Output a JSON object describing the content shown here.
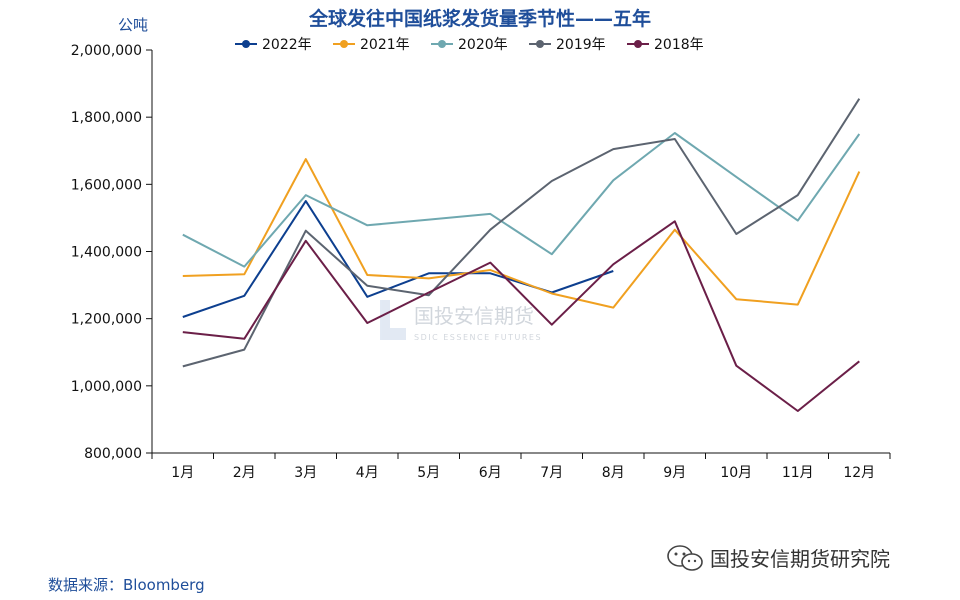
{
  "chart_data": {
    "type": "line",
    "title": "全球发往中国纸浆发货量季节性——五年",
    "ylabel": "公吨",
    "xlabel": "",
    "ylim": [
      800000,
      2000000
    ],
    "yticks": [
      "800,000",
      "1,000,000",
      "1,200,000",
      "1,400,000",
      "1,600,000",
      "1,800,000",
      "2,000,000"
    ],
    "ytick_values": [
      800000,
      1000000,
      1200000,
      1400000,
      1600000,
      1800000,
      2000000
    ],
    "categories": [
      "1月",
      "2月",
      "3月",
      "4月",
      "5月",
      "6月",
      "7月",
      "8月",
      "9月",
      "10月",
      "11月",
      "12月"
    ],
    "legend_position": "top-center",
    "series": [
      {
        "name": "2022年",
        "color": "#0d3f8f",
        "values": [
          1205000,
          1268000,
          1550000,
          1265000,
          1335000,
          1335000,
          1278000,
          1342000,
          null,
          null,
          null,
          null
        ]
      },
      {
        "name": "2021年",
        "color": "#f0a020",
        "values": [
          1327000,
          1332000,
          1675000,
          1330000,
          1320000,
          1345000,
          1275000,
          1233000,
          1465000,
          1258000,
          1242000,
          1638000
        ]
      },
      {
        "name": "2020年",
        "color": "#6fa8b0",
        "values": [
          1450000,
          1355000,
          1568000,
          1478000,
          1495000,
          1512000,
          1392000,
          1612000,
          1753000,
          1622000,
          1492000,
          1750000
        ]
      },
      {
        "name": "2019年",
        "color": "#5c6470",
        "values": [
          1058000,
          1108000,
          1462000,
          1298000,
          1270000,
          1465000,
          1610000,
          1705000,
          1735000,
          1452000,
          1568000,
          1855000
        ]
      },
      {
        "name": "2018年",
        "color": "#6b1f48",
        "values": [
          1160000,
          1140000,
          1432000,
          1187000,
          1278000,
          1367000,
          1182000,
          1362000,
          1490000,
          1060000,
          925000,
          1073000
        ]
      }
    ]
  },
  "footer": {
    "source": "数据来源：Bloomberg",
    "brand": "国投安信期货研究院"
  },
  "watermark": {
    "name": "国投安信期货",
    "subtitle": "SDIC ESSENCE FUTURES"
  }
}
